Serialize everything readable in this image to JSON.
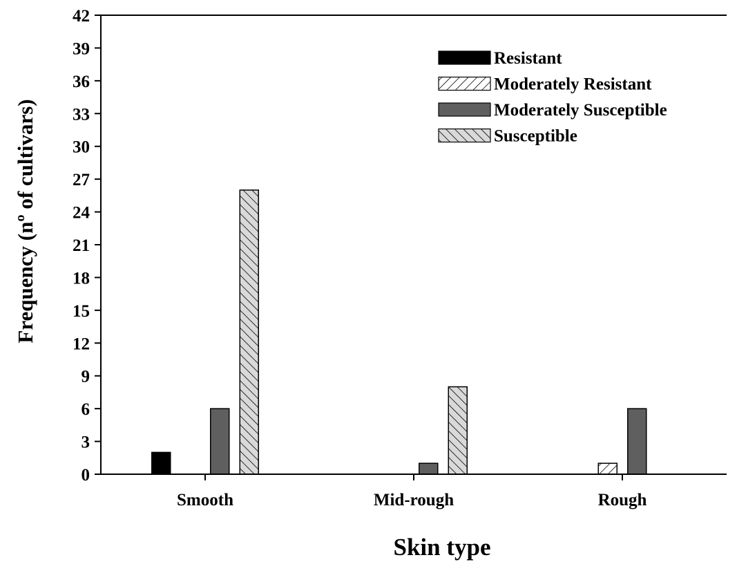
{
  "chart_data": {
    "type": "bar",
    "xlabel": "Skin type",
    "ylabel": "Frequency (nº of cultivars)",
    "categories": [
      "Smooth",
      "Mid-rough",
      "Rough"
    ],
    "ylim": [
      0,
      42
    ],
    "yticks": [
      0,
      3,
      6,
      9,
      12,
      15,
      18,
      21,
      24,
      27,
      30,
      33,
      36,
      39,
      42
    ],
    "grid": false,
    "legend_position": "top-right",
    "series": [
      {
        "name": "Resistant",
        "values": [
          2,
          0,
          0
        ],
        "fill": "#000000",
        "pattern": "solid"
      },
      {
        "name": "Moderately Resistant",
        "values": [
          0,
          0,
          1
        ],
        "fill": "#ffffff",
        "pattern": "forward-hatch"
      },
      {
        "name": "Moderately Susceptible",
        "values": [
          6,
          1,
          6
        ],
        "fill": "#5f5f5f",
        "pattern": "solid"
      },
      {
        "name": "Susceptible",
        "values": [
          26,
          8,
          0
        ],
        "fill": "#d9d9d9",
        "pattern": "back-hatch"
      }
    ]
  }
}
